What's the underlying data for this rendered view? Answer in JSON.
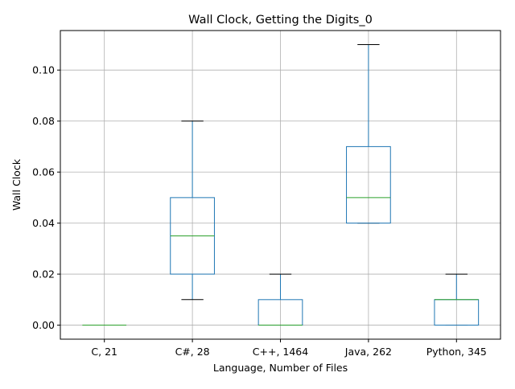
{
  "chart_data": {
    "type": "box",
    "title": "Wall Clock, Getting the Digits_0",
    "xlabel": "Language, Number of Files",
    "ylabel": "Wall Clock",
    "ylim": [
      -0.0055,
      0.1155
    ],
    "yticks": [
      0.0,
      0.02,
      0.04,
      0.06,
      0.08,
      0.1
    ],
    "ytick_labels": [
      "0.00",
      "0.02",
      "0.04",
      "0.06",
      "0.08",
      "0.10"
    ],
    "grid": true,
    "categories": [
      "C, 21",
      "C#, 28",
      "C++, 1464",
      "Java, 262",
      "Python, 345"
    ],
    "boxes": [
      {
        "category": "C, 21",
        "whisker_low": 0.0,
        "q1": 0.0,
        "median": 0.0,
        "q3": 0.0,
        "whisker_high": 0.0
      },
      {
        "category": "C#, 28",
        "whisker_low": 0.01,
        "q1": 0.02,
        "median": 0.035,
        "q3": 0.05,
        "whisker_high": 0.08
      },
      {
        "category": "C++, 1464",
        "whisker_low": 0.0,
        "q1": 0.0,
        "median": 0.0,
        "q3": 0.01,
        "whisker_high": 0.02
      },
      {
        "category": "Java, 262",
        "whisker_low": 0.04,
        "q1": 0.04,
        "median": 0.05,
        "q3": 0.07,
        "whisker_high": 0.11
      },
      {
        "category": "Python, 345",
        "whisker_low": 0.0,
        "q1": 0.0,
        "median": 0.01,
        "q3": 0.01,
        "whisker_high": 0.02
      }
    ],
    "colors": {
      "box": "#1f77b4",
      "median": "#2ca02c",
      "cap": "#000000",
      "grid": "#b0b0b0",
      "axis": "#000000"
    }
  }
}
